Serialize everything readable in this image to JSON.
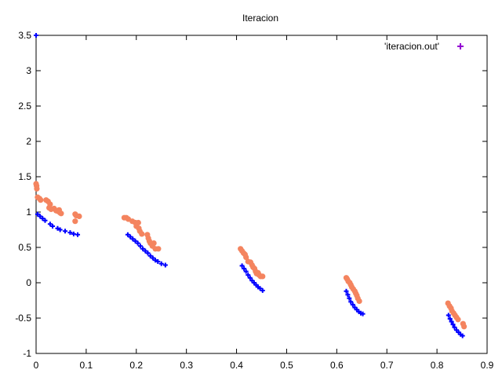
{
  "chart_data": {
    "type": "scatter",
    "title": "Iteracion",
    "xlabel": "",
    "ylabel": "",
    "xlim": [
      0,
      0.9
    ],
    "ylim": [
      -1,
      3.5
    ],
    "xticks": [
      "0",
      "0.1",
      "0.2",
      "0.3",
      "0.4",
      "0.5",
      "0.6",
      "0.7",
      "0.8",
      "0.9"
    ],
    "yticks": [
      "-1",
      "-0.5",
      "0",
      "0.5",
      "1",
      "1.5",
      "2",
      "2.5",
      "3",
      "3.5"
    ],
    "xtick_values": [
      0,
      0.1,
      0.2,
      0.3,
      0.4,
      0.5,
      0.6,
      0.7,
      0.8,
      0.9
    ],
    "ytick_values": [
      -1,
      -0.5,
      0,
      0.5,
      1,
      1.5,
      2,
      2.5,
      3,
      3.5
    ],
    "grid": false,
    "legend_position": "top-right",
    "series": [
      {
        "name": "'iteracion.out'",
        "marker": "plus",
        "color": "#0000ff",
        "legend_color": "#9400d3",
        "points": [
          [
            0.0,
            3.5
          ],
          [
            0.003,
            0.97
          ],
          [
            0.008,
            0.94
          ],
          [
            0.013,
            0.91
          ],
          [
            0.018,
            0.88
          ],
          [
            0.028,
            0.83
          ],
          [
            0.033,
            0.8
          ],
          [
            0.043,
            0.77
          ],
          [
            0.048,
            0.75
          ],
          [
            0.058,
            0.73
          ],
          [
            0.068,
            0.71
          ],
          [
            0.075,
            0.69
          ],
          [
            0.083,
            0.68
          ],
          [
            0.183,
            0.68
          ],
          [
            0.188,
            0.65
          ],
          [
            0.193,
            0.62
          ],
          [
            0.198,
            0.59
          ],
          [
            0.203,
            0.56
          ],
          [
            0.208,
            0.52
          ],
          [
            0.213,
            0.48
          ],
          [
            0.218,
            0.45
          ],
          [
            0.223,
            0.42
          ],
          [
            0.228,
            0.38
          ],
          [
            0.233,
            0.35
          ],
          [
            0.238,
            0.32
          ],
          [
            0.243,
            0.3
          ],
          [
            0.25,
            0.27
          ],
          [
            0.258,
            0.25
          ],
          [
            0.411,
            0.24
          ],
          [
            0.415,
            0.2
          ],
          [
            0.419,
            0.16
          ],
          [
            0.423,
            0.11
          ],
          [
            0.427,
            0.07
          ],
          [
            0.431,
            0.03
          ],
          [
            0.435,
            0.0
          ],
          [
            0.439,
            -0.03
          ],
          [
            0.443,
            -0.06
          ],
          [
            0.447,
            -0.08
          ],
          [
            0.452,
            -0.11
          ],
          [
            0.619,
            -0.12
          ],
          [
            0.622,
            -0.17
          ],
          [
            0.625,
            -0.22
          ],
          [
            0.628,
            -0.27
          ],
          [
            0.632,
            -0.31
          ],
          [
            0.636,
            -0.35
          ],
          [
            0.64,
            -0.38
          ],
          [
            0.644,
            -0.41
          ],
          [
            0.648,
            -0.43
          ],
          [
            0.652,
            -0.44
          ],
          [
            0.823,
            -0.46
          ],
          [
            0.826,
            -0.51
          ],
          [
            0.829,
            -0.55
          ],
          [
            0.832,
            -0.59
          ],
          [
            0.835,
            -0.63
          ],
          [
            0.839,
            -0.67
          ],
          [
            0.843,
            -0.7
          ],
          [
            0.847,
            -0.73
          ],
          [
            0.851,
            -0.75
          ]
        ]
      },
      {
        "name": "",
        "marker": "circle",
        "color": "#f4845f",
        "points": [
          [
            0.0,
            1.4
          ],
          [
            0.001,
            1.37
          ],
          [
            0.0015,
            1.33
          ],
          [
            0.003,
            1.21
          ],
          [
            0.007,
            1.19
          ],
          [
            0.009,
            1.17
          ],
          [
            0.02,
            1.17
          ],
          [
            0.024,
            1.15
          ],
          [
            0.028,
            1.11
          ],
          [
            0.026,
            1.06
          ],
          [
            0.03,
            1.04
          ],
          [
            0.036,
            1.05
          ],
          [
            0.04,
            1.02
          ],
          [
            0.044,
            1.01
          ],
          [
            0.046,
            1.03
          ],
          [
            0.048,
            0.99
          ],
          [
            0.05,
            0.98
          ],
          [
            0.078,
            0.97
          ],
          [
            0.08,
            0.95
          ],
          [
            0.086,
            0.94
          ],
          [
            0.078,
            0.87
          ],
          [
            0.176,
            0.92
          ],
          [
            0.18,
            0.92
          ],
          [
            0.184,
            0.9
          ],
          [
            0.192,
            0.87
          ],
          [
            0.198,
            0.85
          ],
          [
            0.204,
            0.85
          ],
          [
            0.2,
            0.8
          ],
          [
            0.205,
            0.77
          ],
          [
            0.207,
            0.73
          ],
          [
            0.211,
            0.69
          ],
          [
            0.222,
            0.68
          ],
          [
            0.224,
            0.63
          ],
          [
            0.226,
            0.59
          ],
          [
            0.228,
            0.56
          ],
          [
            0.235,
            0.56
          ],
          [
            0.232,
            0.52
          ],
          [
            0.238,
            0.48
          ],
          [
            0.244,
            0.48
          ],
          [
            0.408,
            0.48
          ],
          [
            0.411,
            0.45
          ],
          [
            0.414,
            0.42
          ],
          [
            0.417,
            0.4
          ],
          [
            0.419,
            0.36
          ],
          [
            0.423,
            0.3
          ],
          [
            0.428,
            0.29
          ],
          [
            0.431,
            0.25
          ],
          [
            0.433,
            0.22
          ],
          [
            0.436,
            0.2
          ],
          [
            0.438,
            0.16
          ],
          [
            0.44,
            0.13
          ],
          [
            0.443,
            0.14
          ],
          [
            0.445,
            0.11
          ],
          [
            0.448,
            0.09
          ],
          [
            0.452,
            0.09
          ],
          [
            0.619,
            0.07
          ],
          [
            0.621,
            0.05
          ],
          [
            0.623,
            0.02
          ],
          [
            0.626,
            0.0
          ],
          [
            0.628,
            -0.03
          ],
          [
            0.63,
            -0.06
          ],
          [
            0.633,
            -0.09
          ],
          [
            0.636,
            -0.12
          ],
          [
            0.638,
            -0.15
          ],
          [
            0.64,
            -0.18
          ],
          [
            0.642,
            -0.22
          ],
          [
            0.645,
            -0.26
          ],
          [
            0.822,
            -0.29
          ],
          [
            0.825,
            -0.33
          ],
          [
            0.828,
            -0.36
          ],
          [
            0.83,
            -0.4
          ],
          [
            0.833,
            -0.43
          ],
          [
            0.836,
            -0.46
          ],
          [
            0.839,
            -0.49
          ],
          [
            0.842,
            -0.52
          ],
          [
            0.852,
            -0.58
          ],
          [
            0.854,
            -0.62
          ]
        ]
      }
    ]
  }
}
